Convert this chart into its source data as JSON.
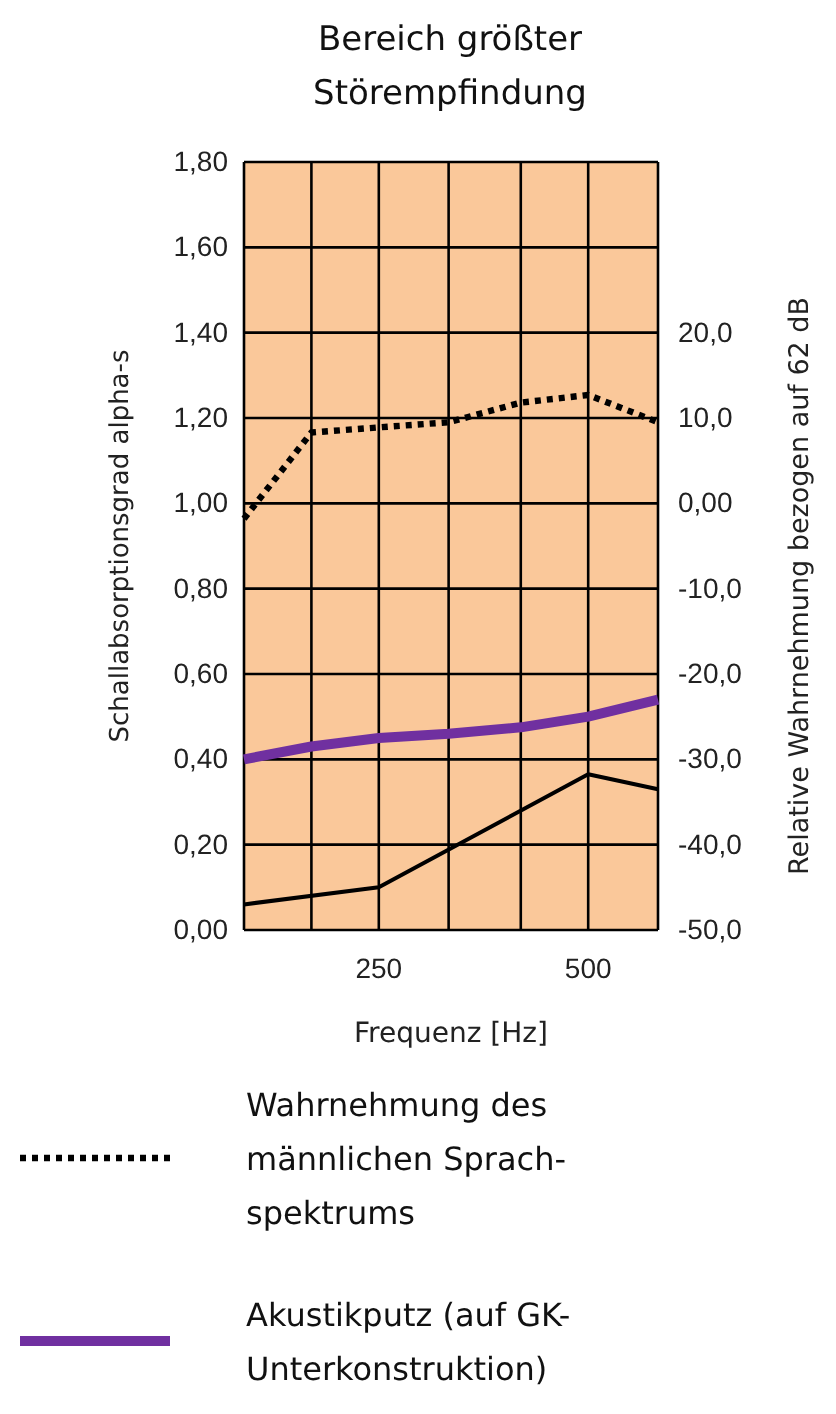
{
  "chart_data": {
    "type": "line",
    "title": "Bereich größter Störempfindung",
    "xlabel": "Frequenz [Hz]",
    "ylabel": "Schallabsorptionsgrad alpha-s",
    "y2label": "Relative Wahrnehmung bezogen auf 62 dB",
    "x": [
      160,
      200,
      250,
      315,
      400,
      500,
      630
    ],
    "log": "x",
    "xlim": [
      160,
      630
    ],
    "xticks": [
      {
        "value": 160,
        "label": null
      },
      {
        "value": 200,
        "label": null
      },
      250,
      {
        "value": 315,
        "label": null
      },
      {
        "value": 400,
        "label": null
      },
      500,
      {
        "value": 630,
        "label": null
      }
    ],
    "ylim": [
      0,
      1.8
    ],
    "yticks": [
      {
        "value": 0,
        "label": "0,00"
      },
      {
        "value": 0.2,
        "label": "0,20"
      },
      {
        "value": 0.4,
        "label": "0,40"
      },
      {
        "value": 0.6,
        "label": "0,60"
      },
      {
        "value": 0.8,
        "label": "0,80"
      },
      {
        "value": 1,
        "label": "1,00"
      },
      {
        "value": 1.2,
        "label": "1,20"
      },
      {
        "value": 1.4,
        "label": "1,40"
      },
      {
        "value": 1.6,
        "label": "1,60"
      },
      {
        "value": 1.8,
        "label": "1,80"
      }
    ],
    "y2lim": [
      -50,
      40
    ],
    "y2ticks": [
      {
        "value": -50,
        "label": "-50,0"
      },
      {
        "value": -40,
        "label": "-40,0"
      },
      {
        "value": -30,
        "label": "-30,0"
      },
      {
        "value": -20,
        "label": "-20,0"
      },
      {
        "value": -10,
        "label": "-10,0"
      },
      {
        "value": 0,
        "label": "0,00"
      },
      {
        "value": 10,
        "label": "10,0"
      },
      {
        "value": 20,
        "label": "20,0"
      }
    ],
    "grid": true,
    "legend": "bottom",
    "series": [
      {
        "name": "Wahrnehmung des männlichen Sprach-spektrums",
        "color": "#000000",
        "axis": "y2",
        "line_style": "dotted",
        "values": [
          -1.8,
          8.3,
          8.9,
          9.5,
          11.8,
          12.7,
          9.5
        ]
      },
      {
        "name": "Akustikputz (auf GK-Unterkonstruktion)",
        "color": "#7030a0",
        "line_style": "solid",
        "values": [
          0.4,
          0.43,
          0.45,
          0.46,
          0.475,
          0.5,
          0.54
        ]
      },
      {
        "color": "#000000",
        "line_style": "solid",
        "x": [
          160,
          250,
          500,
          630
        ],
        "values": [
          0.06,
          0.1,
          0.365,
          0.33
        ]
      }
    ]
  }
}
